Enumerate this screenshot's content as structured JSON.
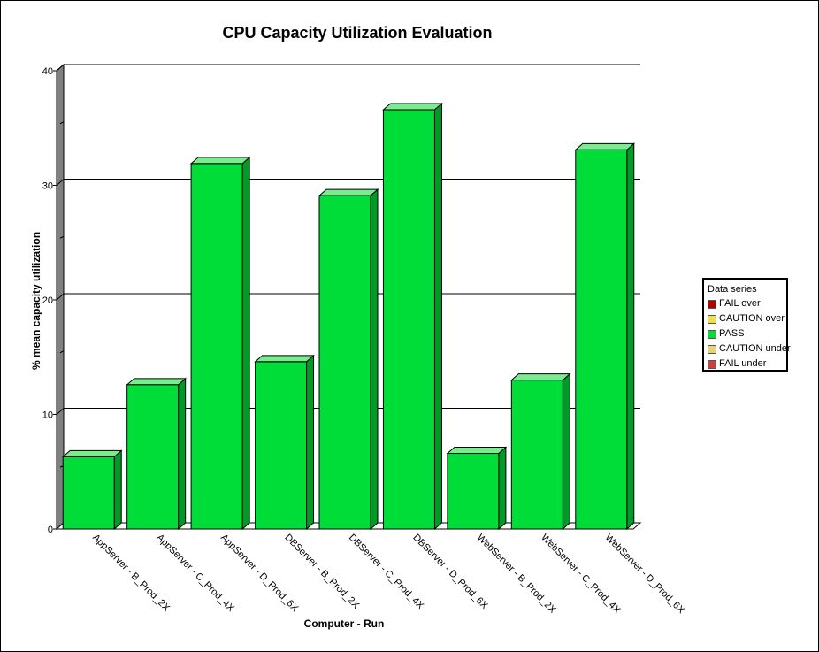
{
  "chart_data": {
    "type": "bar",
    "title": "CPU Capacity Utilization Evaluation",
    "xlabel": "Computer - Run",
    "ylabel": "% mean capacity utilization",
    "ylim": [
      0,
      40
    ],
    "yticks": [
      "0",
      "10",
      "20",
      "30",
      "40"
    ],
    "categories": [
      "AppServer - B_Prod_2X",
      "AppServer - C_Prod_4X",
      "AppServer - D_Prod_6X",
      "DBServer - B_Prod_2X",
      "DBServer - C_Prod_4X",
      "DBServer - D_Prod_6X",
      "WebServer - B_Prod_2X",
      "WebServer - C_Prod_4X",
      "WebServer - D_Prod_6X"
    ],
    "series": [
      {
        "name": "PASS",
        "values": [
          6.3,
          12.6,
          31.9,
          14.6,
          29.1,
          36.6,
          6.6,
          13.0,
          33.1
        ]
      }
    ],
    "grid": true,
    "legend_position": "right",
    "legend": {
      "title": "Data series",
      "items": [
        {
          "label": "FAIL over",
          "color": "#b00000"
        },
        {
          "label": "CAUTION over",
          "color": "#f2df40"
        },
        {
          "label": "PASS",
          "color": "#00dd38"
        },
        {
          "label": "CAUTION under",
          "color": "#e8d66a"
        },
        {
          "label": "FAIL under",
          "color": "#c84040"
        }
      ]
    },
    "colors": {
      "bar_front": "#00dd38",
      "bar_top": "#78ec8e",
      "bar_side": "#009a27",
      "wall": "#808080"
    }
  }
}
